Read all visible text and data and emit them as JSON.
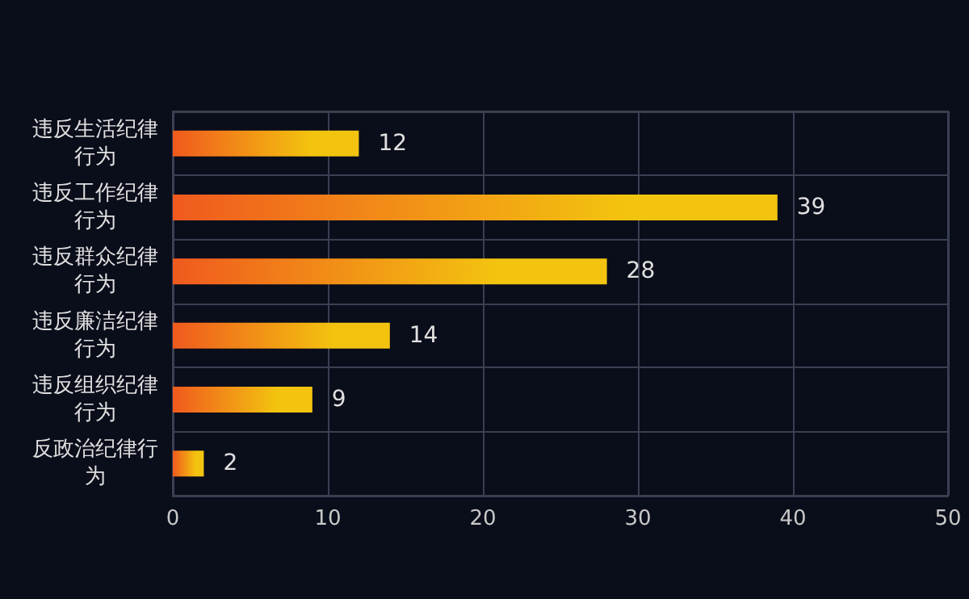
{
  "chart_data": {
    "type": "bar",
    "orientation": "horizontal",
    "categories": [
      "违反生活纪律行为",
      "违反工作纪律行为",
      "违反群众纪律行为",
      "违反廉洁纪律行为",
      "违反组织纪律行为",
      "反政治纪律行为"
    ],
    "values": [
      12,
      39,
      28,
      14,
      9,
      2
    ],
    "color": "#f3c40f",
    "xlim": [
      0,
      50
    ],
    "xticks": [
      0,
      10,
      20,
      30,
      40,
      50
    ],
    "grid": true,
    "data_labels": true
  }
}
